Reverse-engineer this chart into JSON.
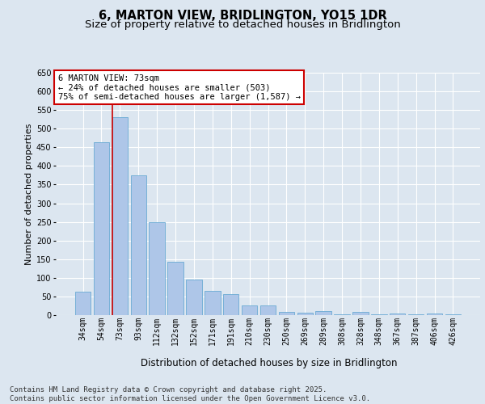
{
  "title_line1": "6, MARTON VIEW, BRIDLINGTON, YO15 1DR",
  "title_line2": "Size of property relative to detached houses in Bridlington",
  "xlabel": "Distribution of detached houses by size in Bridlington",
  "ylabel": "Number of detached properties",
  "categories": [
    "34sqm",
    "54sqm",
    "73sqm",
    "93sqm",
    "112sqm",
    "132sqm",
    "152sqm",
    "171sqm",
    "191sqm",
    "210sqm",
    "230sqm",
    "250sqm",
    "269sqm",
    "289sqm",
    "308sqm",
    "328sqm",
    "348sqm",
    "367sqm",
    "387sqm",
    "406sqm",
    "426sqm"
  ],
  "values": [
    63,
    463,
    530,
    375,
    250,
    143,
    95,
    64,
    57,
    27,
    26,
    8,
    7,
    11,
    2,
    8,
    2,
    4,
    2,
    5,
    3
  ],
  "bar_color": "#aec6e8",
  "bar_edge_color": "#6aaad4",
  "highlight_index": 2,
  "highlight_line_color": "#cc0000",
  "highlight_box_color": "#cc0000",
  "background_color": "#dce6f0",
  "plot_bg_color": "#dce6f0",
  "ylim": [
    0,
    650
  ],
  "yticks": [
    0,
    50,
    100,
    150,
    200,
    250,
    300,
    350,
    400,
    450,
    500,
    550,
    600,
    650
  ],
  "annotation_line1": "6 MARTON VIEW: 73sqm",
  "annotation_line2": "← 24% of detached houses are smaller (503)",
  "annotation_line3": "75% of semi-detached houses are larger (1,587) →",
  "footer_line1": "Contains HM Land Registry data © Crown copyright and database right 2025.",
  "footer_line2": "Contains public sector information licensed under the Open Government Licence v3.0.",
  "title_fontsize": 10.5,
  "subtitle_fontsize": 9.5,
  "axis_label_fontsize": 8,
  "tick_fontsize": 7,
  "annotation_fontsize": 7.5,
  "footer_fontsize": 6.5
}
